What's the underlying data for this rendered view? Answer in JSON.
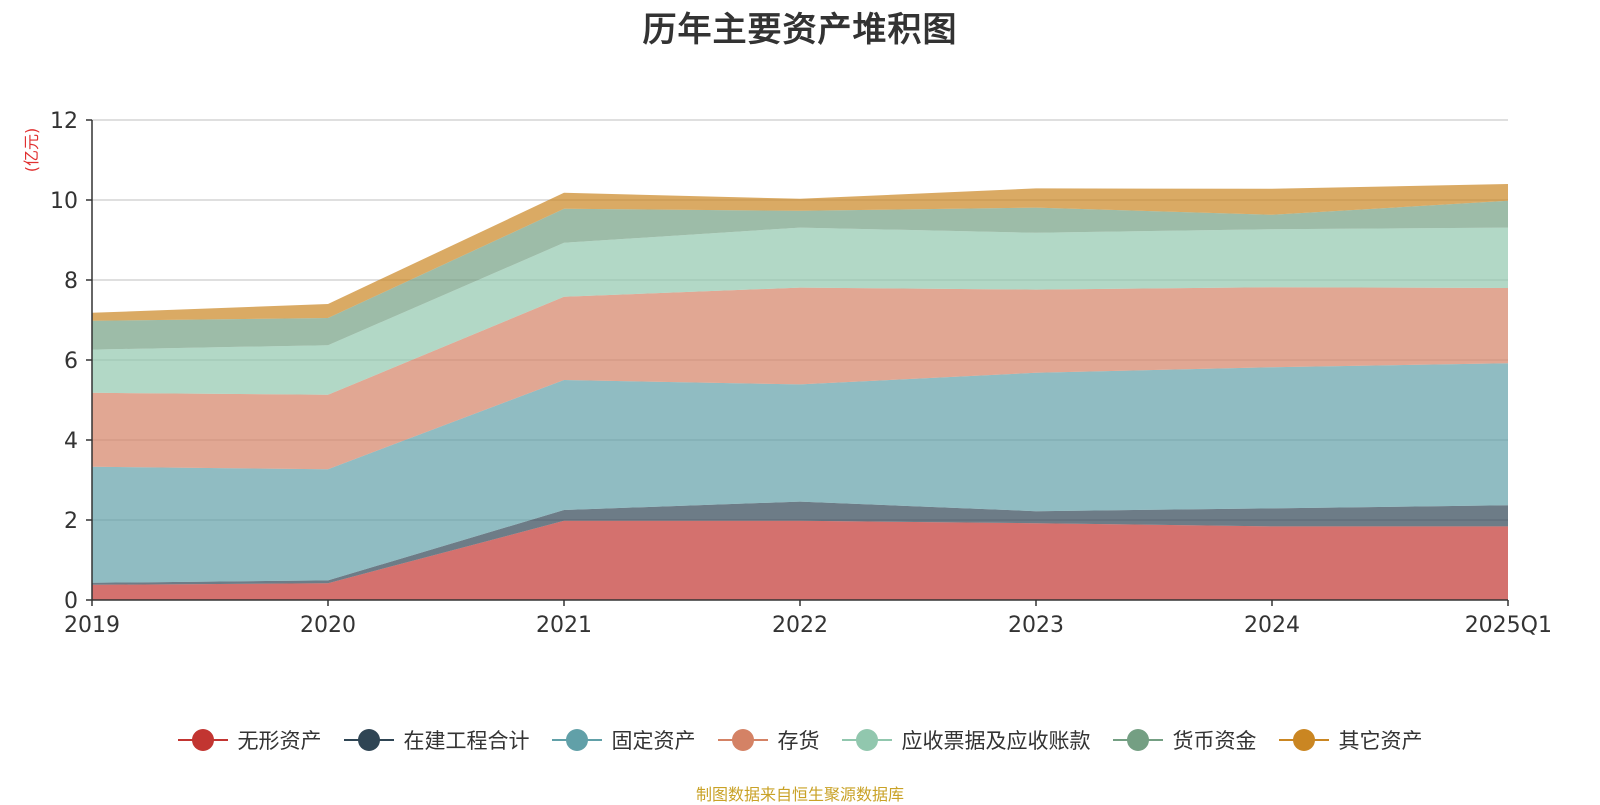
{
  "chart_data": {
    "type": "area",
    "stacked": true,
    "title": "历年主要资产堆积图",
    "ylabel": "(亿元)",
    "ylim": [
      0,
      12
    ],
    "yticks": [
      0,
      2,
      4,
      6,
      8,
      10,
      12
    ],
    "grid": true,
    "legend_position": "bottom",
    "categories": [
      "2019",
      "2020",
      "2021",
      "2022",
      "2023",
      "2024",
      "2025Q1"
    ],
    "series": [
      {
        "name": "无形资产",
        "color": "#c23531",
        "values": [
          0.38,
          0.42,
          1.98,
          1.98,
          1.92,
          1.84,
          1.84
        ]
      },
      {
        "name": "在建工程合计",
        "color": "#2f4554",
        "values": [
          0.05,
          0.07,
          0.27,
          0.48,
          0.3,
          0.45,
          0.53
        ]
      },
      {
        "name": "固定资产",
        "color": "#61a0a8",
        "values": [
          2.9,
          2.78,
          3.25,
          2.93,
          3.46,
          3.53,
          3.55
        ]
      },
      {
        "name": "存货",
        "color": "#d48265",
        "values": [
          1.85,
          1.86,
          2.08,
          2.42,
          2.08,
          2.0,
          1.88
        ]
      },
      {
        "name": "应收票据及应收账款",
        "color": "#91c7ae",
        "values": [
          1.08,
          1.24,
          1.35,
          1.5,
          1.42,
          1.45,
          1.51
        ]
      },
      {
        "name": "货币资金",
        "color": "#749f83",
        "values": [
          0.72,
          0.68,
          0.85,
          0.42,
          0.63,
          0.36,
          0.67
        ]
      },
      {
        "name": "其它资产",
        "color": "#ca8622",
        "values": [
          0.2,
          0.35,
          0.4,
          0.3,
          0.48,
          0.65,
          0.42
        ]
      }
    ]
  },
  "source_note": "制图数据来自恒生聚源数据库"
}
